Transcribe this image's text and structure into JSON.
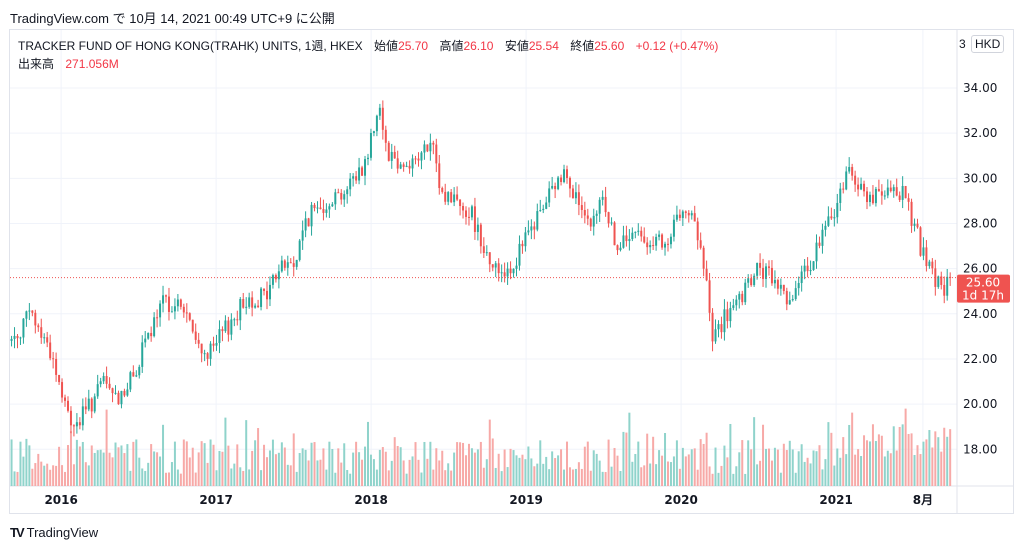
{
  "published": "TradingView.com で 10月 14, 2021 00:49 UTC+9 に公開",
  "legend": {
    "symbol": "TRACKER FUND OF HONG KONG(TRAHK) UNITS, 1週, HKEX",
    "open_label": "始値",
    "open": "25.70",
    "high_label": "高値",
    "high": "26.10",
    "low_label": "安値",
    "low": "25.54",
    "close_label": "終値",
    "close": "25.60",
    "change": "+0.12 (+0.47%)",
    "volume_label": "出来高",
    "volume": "271.056M"
  },
  "currency": "HKD",
  "currency_cut": "3",
  "last_price_label": "25.60",
  "countdown": "1d 17h",
  "footer_logo": "TradingView",
  "colors": {
    "up": "#26a69a",
    "down": "#ef5350",
    "up_vol": "#8fd3cb",
    "down_vol": "#f7a9a7",
    "grid": "#f0f3fa"
  },
  "chart_data": {
    "type": "candlestick",
    "title": "TRACKER FUND OF HONG KONG(TRAHK) UNITS, 1週, HKEX",
    "interval": "weekly",
    "y_ticks": [
      "18.00",
      "20.00",
      "22.00",
      "24.00",
      "26.00",
      "28.00",
      "30.00",
      "32.00",
      "34.00"
    ],
    "ylim": [
      16.6,
      35.9
    ],
    "x_ticks": [
      {
        "t": 2016.0,
        "label": "2016"
      },
      {
        "t": 2017.0,
        "label": "2017"
      },
      {
        "t": 2018.0,
        "label": "2018"
      },
      {
        "t": 2019.0,
        "label": "2019"
      },
      {
        "t": 2020.0,
        "label": "2020"
      },
      {
        "t": 2021.0,
        "label": "2021"
      },
      {
        "t": 2021.56,
        "label": "8月"
      }
    ],
    "xlim": [
      2015.67,
      2021.78
    ],
    "last_close": 25.6,
    "approx_close_path": [
      [
        2015.68,
        22.8
      ],
      [
        2015.8,
        24.0
      ],
      [
        2015.93,
        22.4
      ],
      [
        2016.03,
        19.7
      ],
      [
        2016.09,
        19.0
      ],
      [
        2016.19,
        20.0
      ],
      [
        2016.28,
        21.0
      ],
      [
        2016.35,
        20.2
      ],
      [
        2016.45,
        21.0
      ],
      [
        2016.54,
        22.6
      ],
      [
        2016.67,
        24.6
      ],
      [
        2016.8,
        24.2
      ],
      [
        2016.87,
        22.6
      ],
      [
        2016.96,
        22.2
      ],
      [
        2017.06,
        23.3
      ],
      [
        2017.19,
        24.6
      ],
      [
        2017.32,
        24.8
      ],
      [
        2017.42,
        26.2
      ],
      [
        2017.51,
        26.2
      ],
      [
        2017.58,
        28.2
      ],
      [
        2017.71,
        29.0
      ],
      [
        2017.84,
        29.5
      ],
      [
        2017.97,
        30.8
      ],
      [
        2018.05,
        33.5
      ],
      [
        2018.1,
        31.3
      ],
      [
        2018.19,
        30.6
      ],
      [
        2018.29,
        30.8
      ],
      [
        2018.39,
        31.5
      ],
      [
        2018.45,
        29.3
      ],
      [
        2018.55,
        29.1
      ],
      [
        2018.65,
        28.4
      ],
      [
        2018.74,
        26.8
      ],
      [
        2018.81,
        25.9
      ],
      [
        2018.91,
        26.1
      ],
      [
        2019.0,
        27.3
      ],
      [
        2019.13,
        29.0
      ],
      [
        2019.26,
        30.4
      ],
      [
        2019.36,
        28.4
      ],
      [
        2019.42,
        27.5
      ],
      [
        2019.49,
        29.3
      ],
      [
        2019.59,
        26.8
      ],
      [
        2019.68,
        27.5
      ],
      [
        2019.81,
        27.3
      ],
      [
        2019.91,
        26.8
      ],
      [
        2020.01,
        29.0
      ],
      [
        2020.1,
        27.7
      ],
      [
        2020.17,
        25.0
      ],
      [
        2020.2,
        22.8
      ],
      [
        2020.27,
        23.7
      ],
      [
        2020.39,
        24.6
      ],
      [
        2020.49,
        26.0
      ],
      [
        2020.59,
        25.5
      ],
      [
        2020.72,
        24.6
      ],
      [
        2020.78,
        25.5
      ],
      [
        2020.88,
        27.0
      ],
      [
        2020.98,
        28.4
      ],
      [
        2021.09,
        30.6
      ],
      [
        2021.17,
        29.3
      ],
      [
        2021.3,
        29.1
      ],
      [
        2021.43,
        29.5
      ],
      [
        2021.53,
        27.3
      ],
      [
        2021.59,
        26.0
      ],
      [
        2021.69,
        25.0
      ],
      [
        2021.75,
        25.6
      ]
    ]
  }
}
